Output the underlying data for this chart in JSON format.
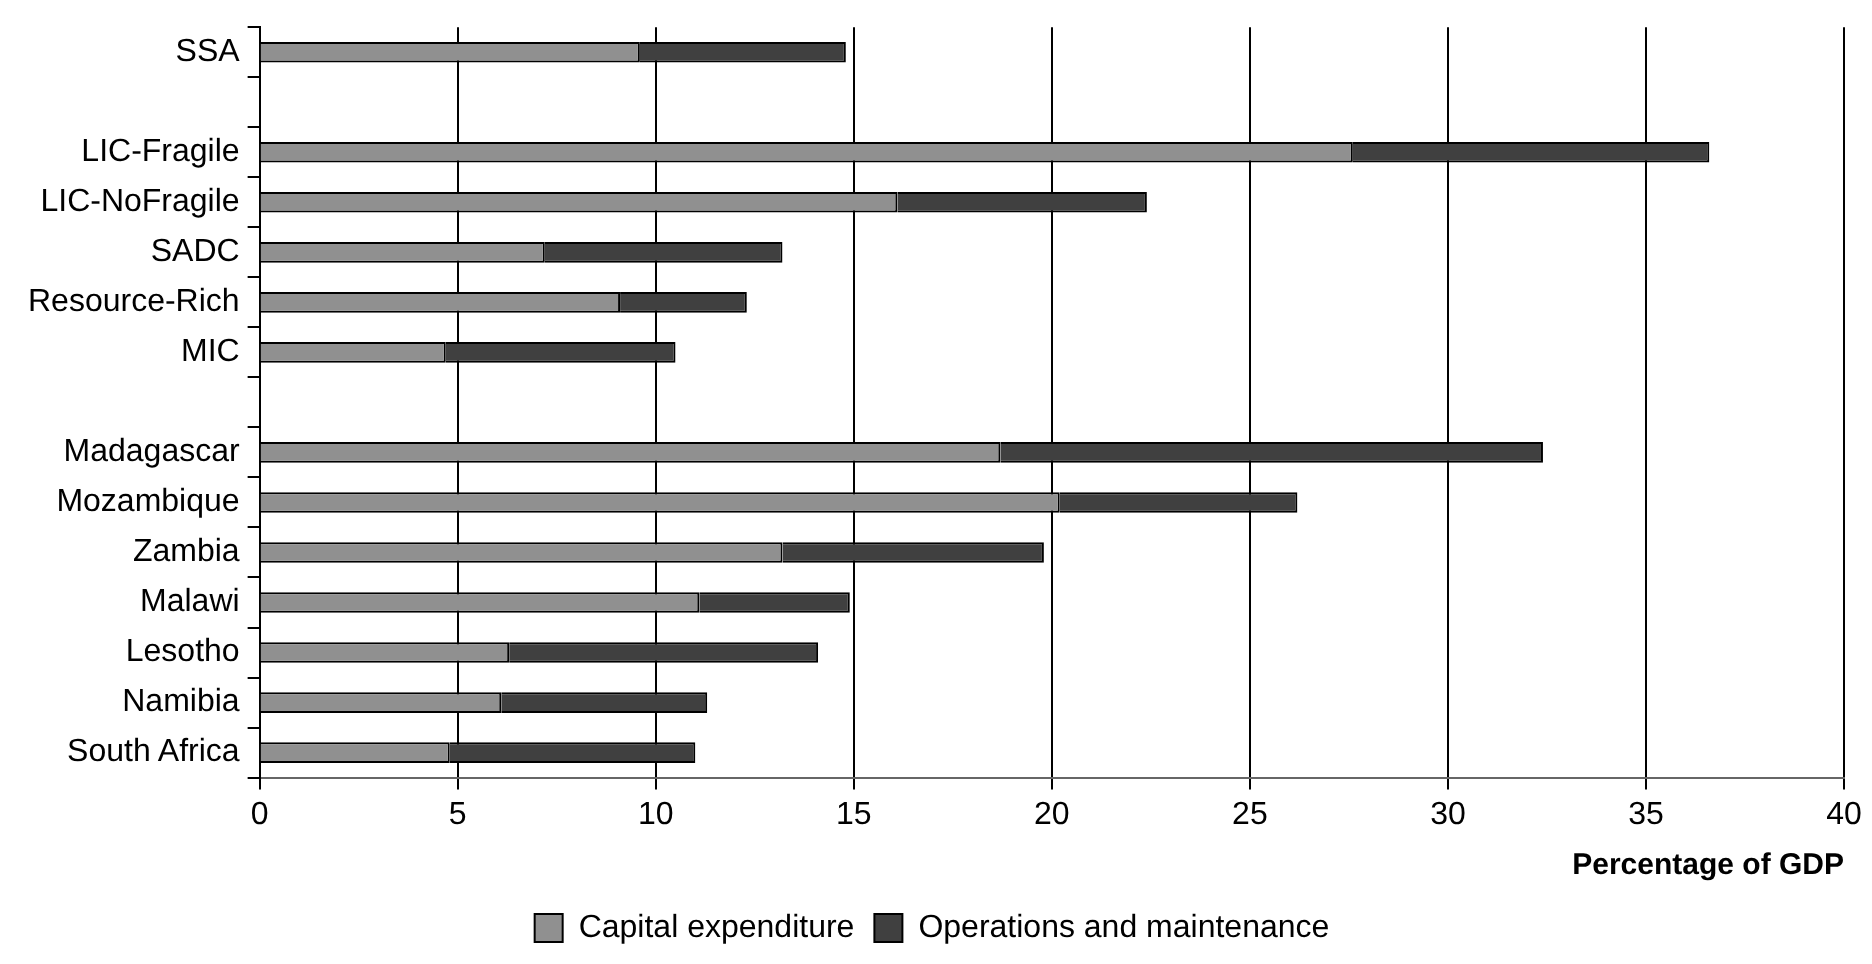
{
  "chart_data": {
    "type": "bar",
    "orientation": "horizontal",
    "stacked": true,
    "xlabel": "Percentage of GDP",
    "categories": [
      "SSA",
      null,
      "LIC-Fragile",
      "LIC-NoFragile",
      "SADC",
      "Resource-Rich",
      "MIC",
      null,
      "Madagascar",
      "Mozambique",
      "Zambia",
      "Malawi",
      "Lesotho",
      "Namibia",
      "South Africa"
    ],
    "series": [
      {
        "name": "Capital expenditure",
        "color": "#909090",
        "values": [
          9.6,
          null,
          27.6,
          16.1,
          7.2,
          9.1,
          4.7,
          null,
          18.7,
          20.2,
          13.2,
          11.1,
          6.3,
          6.1,
          4.8
        ]
      },
      {
        "name": "Operations and maintenance",
        "color": "#404040",
        "values": [
          5.2,
          null,
          9.0,
          6.3,
          6.0,
          3.2,
          5.8,
          null,
          13.7,
          6.0,
          6.6,
          3.8,
          7.8,
          5.2,
          6.2
        ]
      }
    ],
    "xlim": [
      0,
      40
    ],
    "xticks": [
      0,
      5,
      10,
      15,
      20,
      25,
      30,
      35,
      40
    ],
    "grid": "x",
    "legend": "bottom"
  }
}
